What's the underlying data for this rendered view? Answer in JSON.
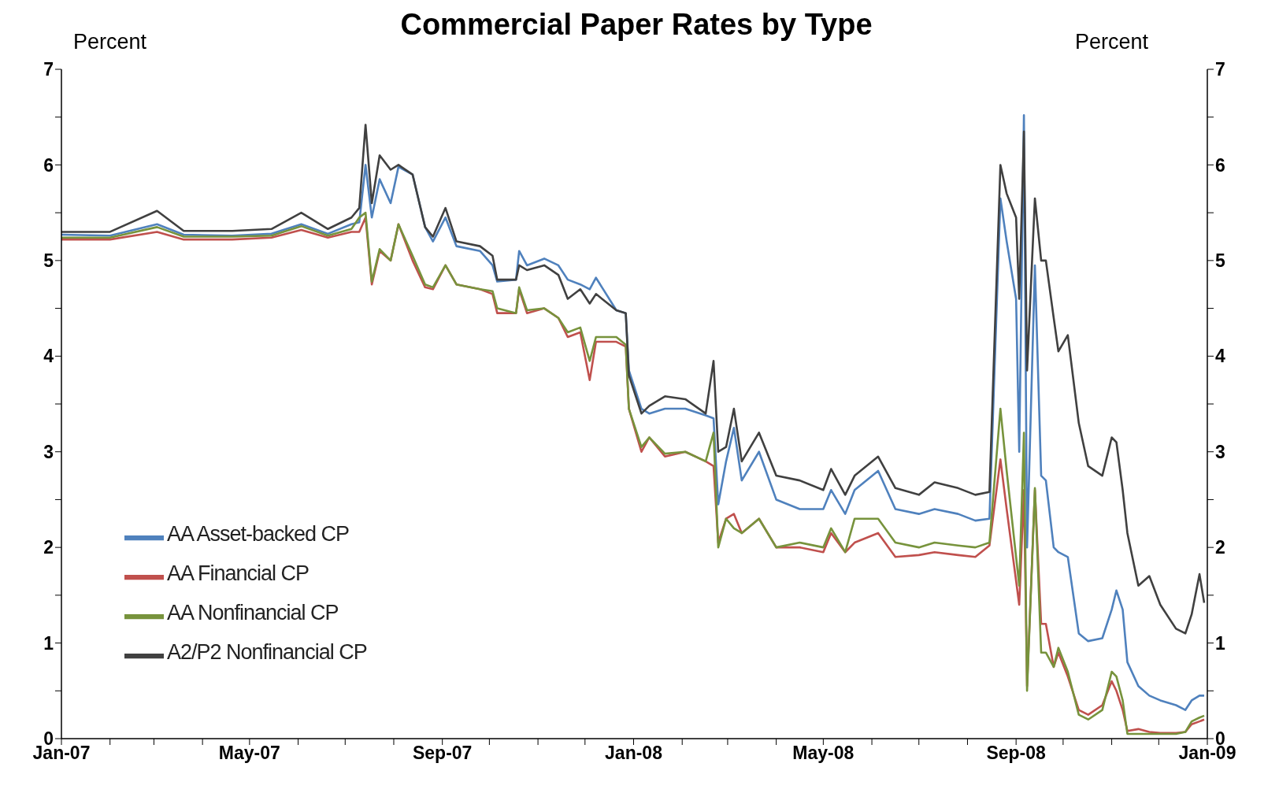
{
  "chart_data": {
    "type": "line",
    "title": "Commercial Paper Rates by Type",
    "ylabel": "Percent",
    "y2label": "Percent",
    "x": [
      "2007-01-01",
      "2007-02-01",
      "2007-03-03",
      "2007-03-20",
      "2007-04-20",
      "2007-05-15",
      "2007-06-03",
      "2007-06-20",
      "2007-07-05",
      "2007-07-10",
      "2007-07-14",
      "2007-07-18",
      "2007-07-23",
      "2007-07-30",
      "2007-08-04",
      "2007-08-13",
      "2007-08-21",
      "2007-08-26",
      "2007-09-03",
      "2007-09-10",
      "2007-09-25",
      "2007-10-03",
      "2007-10-06",
      "2007-10-18",
      "2007-10-20",
      "2007-10-25",
      "2007-11-05",
      "2007-11-14",
      "2007-11-20",
      "2007-11-28",
      "2007-12-04",
      "2007-12-08",
      "2007-12-21",
      "2007-12-27",
      "2007-12-29",
      "2008-01-06",
      "2008-01-11",
      "2008-01-21",
      "2008-02-03",
      "2008-02-16",
      "2008-02-21",
      "2008-02-24",
      "2008-02-29",
      "2008-03-05",
      "2008-03-10",
      "2008-03-21",
      "2008-04-01",
      "2008-04-16",
      "2008-05-01",
      "2008-05-06",
      "2008-05-15",
      "2008-05-21",
      "2008-06-05",
      "2008-06-16",
      "2008-07-01",
      "2008-07-11",
      "2008-07-26",
      "2008-08-06",
      "2008-08-15",
      "2008-08-22",
      "2008-08-26",
      "2008-09-01",
      "2008-09-03",
      "2008-09-06",
      "2008-09-08",
      "2008-09-13",
      "2008-09-17",
      "2008-09-20",
      "2008-09-25",
      "2008-09-28",
      "2008-10-04",
      "2008-10-11",
      "2008-10-17",
      "2008-10-26",
      "2008-11-01",
      "2008-11-04",
      "2008-11-08",
      "2008-11-11",
      "2008-11-18",
      "2008-11-25",
      "2008-12-02",
      "2008-12-12",
      "2008-12-18",
      "2008-12-22",
      "2008-12-27",
      "2008-12-30"
    ],
    "series": [
      {
        "name": "AA Asset-backed CP",
        "color": "#4f81bd",
        "values": [
          5.27,
          5.26,
          5.38,
          5.27,
          5.26,
          5.28,
          5.38,
          5.28,
          5.38,
          5.4,
          6.0,
          5.45,
          5.85,
          5.6,
          5.98,
          5.9,
          5.35,
          5.2,
          5.45,
          5.15,
          5.1,
          4.95,
          4.78,
          4.8,
          5.1,
          4.95,
          5.02,
          4.95,
          4.8,
          4.75,
          4.7,
          4.82,
          4.48,
          4.45,
          3.85,
          3.45,
          3.4,
          3.45,
          3.45,
          3.38,
          3.35,
          2.45,
          2.9,
          3.25,
          2.7,
          3.0,
          2.5,
          2.4,
          2.4,
          2.6,
          2.35,
          2.6,
          2.8,
          2.4,
          2.35,
          2.4,
          2.35,
          2.28,
          2.3,
          5.65,
          5.2,
          4.6,
          3.0,
          6.52,
          2.0,
          4.95,
          2.75,
          2.7,
          2.0,
          1.95,
          1.9,
          1.1,
          1.02,
          1.05,
          1.35,
          1.55,
          1.35,
          0.8,
          0.55,
          0.45,
          0.4,
          0.35,
          0.3,
          0.4,
          0.45,
          0.45
        ]
      },
      {
        "name": "AA Financial CP",
        "color": "#c0504d",
        "values": [
          5.22,
          5.22,
          5.3,
          5.22,
          5.22,
          5.24,
          5.32,
          5.24,
          5.3,
          5.3,
          5.45,
          4.75,
          5.1,
          5.0,
          5.38,
          5.0,
          4.72,
          4.7,
          4.95,
          4.75,
          4.7,
          4.65,
          4.45,
          4.45,
          4.7,
          4.45,
          4.5,
          4.4,
          4.2,
          4.25,
          3.75,
          4.15,
          4.15,
          4.1,
          3.45,
          3.0,
          3.15,
          2.95,
          3.0,
          2.9,
          2.85,
          2.05,
          2.3,
          2.35,
          2.15,
          2.3,
          2.0,
          2.0,
          1.95,
          2.15,
          1.95,
          2.05,
          2.15,
          1.9,
          1.92,
          1.95,
          1.92,
          1.9,
          2.02,
          2.92,
          2.4,
          1.65,
          1.4,
          2.6,
          0.55,
          2.6,
          1.2,
          1.2,
          0.75,
          0.9,
          0.65,
          0.3,
          0.25,
          0.35,
          0.6,
          0.5,
          0.3,
          0.08,
          0.1,
          0.07,
          0.06,
          0.06,
          0.07,
          0.15,
          0.18,
          0.2
        ]
      },
      {
        "name": "AA Nonfinancial CP",
        "color": "#77933c",
        "values": [
          5.24,
          5.24,
          5.35,
          5.25,
          5.25,
          5.26,
          5.36,
          5.26,
          5.33,
          5.45,
          5.5,
          4.78,
          5.12,
          5.0,
          5.38,
          5.05,
          4.75,
          4.72,
          4.95,
          4.75,
          4.7,
          4.68,
          4.5,
          4.45,
          4.72,
          4.48,
          4.5,
          4.4,
          4.25,
          4.3,
          3.95,
          4.2,
          4.2,
          4.12,
          3.45,
          3.05,
          3.15,
          2.98,
          3.0,
          2.9,
          3.2,
          2.0,
          2.3,
          2.2,
          2.15,
          2.3,
          2.0,
          2.05,
          2.0,
          2.2,
          1.95,
          2.3,
          2.3,
          2.05,
          2.0,
          2.05,
          2.02,
          2.0,
          2.05,
          3.45,
          2.8,
          1.9,
          1.6,
          3.2,
          0.5,
          2.62,
          0.9,
          0.9,
          0.75,
          0.95,
          0.7,
          0.25,
          0.2,
          0.3,
          0.7,
          0.65,
          0.4,
          0.05,
          0.05,
          0.05,
          0.05,
          0.05,
          0.07,
          0.18,
          0.22,
          0.24
        ]
      },
      {
        "name": "A2/P2 Nonfinancial CP",
        "color": "#404040",
        "values": [
          5.3,
          5.3,
          5.52,
          5.31,
          5.31,
          5.33,
          5.5,
          5.33,
          5.45,
          5.55,
          6.42,
          5.6,
          6.1,
          5.95,
          6.0,
          5.9,
          5.35,
          5.25,
          5.55,
          5.2,
          5.15,
          5.05,
          4.8,
          4.8,
          4.95,
          4.9,
          4.95,
          4.85,
          4.6,
          4.7,
          4.55,
          4.65,
          4.48,
          4.45,
          3.8,
          3.4,
          3.48,
          3.58,
          3.55,
          3.4,
          3.95,
          3.0,
          3.05,
          3.45,
          2.9,
          3.2,
          2.75,
          2.7,
          2.6,
          2.82,
          2.55,
          2.75,
          2.95,
          2.62,
          2.55,
          2.68,
          2.62,
          2.55,
          2.58,
          6.0,
          5.7,
          5.45,
          4.6,
          6.35,
          3.85,
          5.65,
          5.0,
          5.0,
          4.4,
          4.05,
          4.22,
          3.3,
          2.85,
          2.75,
          3.15,
          3.1,
          2.6,
          2.15,
          1.6,
          1.7,
          1.4,
          1.15,
          1.1,
          1.3,
          1.72,
          1.42
        ]
      }
    ],
    "xlim": [
      "2007-01-01",
      "2009-01-01"
    ],
    "xticks": [
      {
        "value": "2007-01-01",
        "label": "Jan-07"
      },
      {
        "value": "2007-02-01",
        "label": null
      },
      {
        "value": "2007-03-01",
        "label": null
      },
      {
        "value": "2007-04-01",
        "label": null
      },
      {
        "value": "2007-05-01",
        "label": "May-07"
      },
      {
        "value": "2007-06-01",
        "label": null
      },
      {
        "value": "2007-07-01",
        "label": null
      },
      {
        "value": "2007-08-01",
        "label": null
      },
      {
        "value": "2007-09-01",
        "label": "Sep-07"
      },
      {
        "value": "2007-10-01",
        "label": null
      },
      {
        "value": "2007-11-01",
        "label": null
      },
      {
        "value": "2007-12-01",
        "label": null
      },
      {
        "value": "2008-01-01",
        "label": "Jan-08"
      },
      {
        "value": "2008-02-01",
        "label": null
      },
      {
        "value": "2008-03-01",
        "label": null
      },
      {
        "value": "2008-04-01",
        "label": null
      },
      {
        "value": "2008-05-01",
        "label": "May-08"
      },
      {
        "value": "2008-06-01",
        "label": null
      },
      {
        "value": "2008-07-01",
        "label": null
      },
      {
        "value": "2008-08-01",
        "label": null
      },
      {
        "value": "2008-09-01",
        "label": "Sep-08"
      },
      {
        "value": "2008-10-01",
        "label": null
      },
      {
        "value": "2008-11-01",
        "label": null
      },
      {
        "value": "2008-12-01",
        "label": null
      },
      {
        "value": "2009-01-01",
        "label": "Jan-09"
      }
    ],
    "ylim": [
      0,
      7
    ],
    "yticks": [
      0,
      {
        "value": 0.5,
        "label": null
      },
      1,
      {
        "value": 1.5,
        "label": null
      },
      2,
      {
        "value": 2.5,
        "label": null
      },
      3,
      {
        "value": 3.5,
        "label": null
      },
      4,
      {
        "value": 4.5,
        "label": null
      },
      5,
      {
        "value": 5.5,
        "label": null
      },
      6,
      {
        "value": 6.5,
        "label": null
      },
      7
    ],
    "y2lim": [
      0,
      7
    ],
    "y2ticks": [
      0,
      {
        "value": 0.5,
        "label": null
      },
      1,
      {
        "value": 1.5,
        "label": null
      },
      2,
      {
        "value": 2.5,
        "label": null
      },
      3,
      {
        "value": 3.5,
        "label": null
      },
      4,
      {
        "value": 4.5,
        "label": null
      },
      5,
      {
        "value": 5.5,
        "label": null
      },
      6,
      {
        "value": 6.5,
        "label": null
      },
      7
    ],
    "legend": "bottom left",
    "grid": false,
    "line_style": "solid"
  }
}
